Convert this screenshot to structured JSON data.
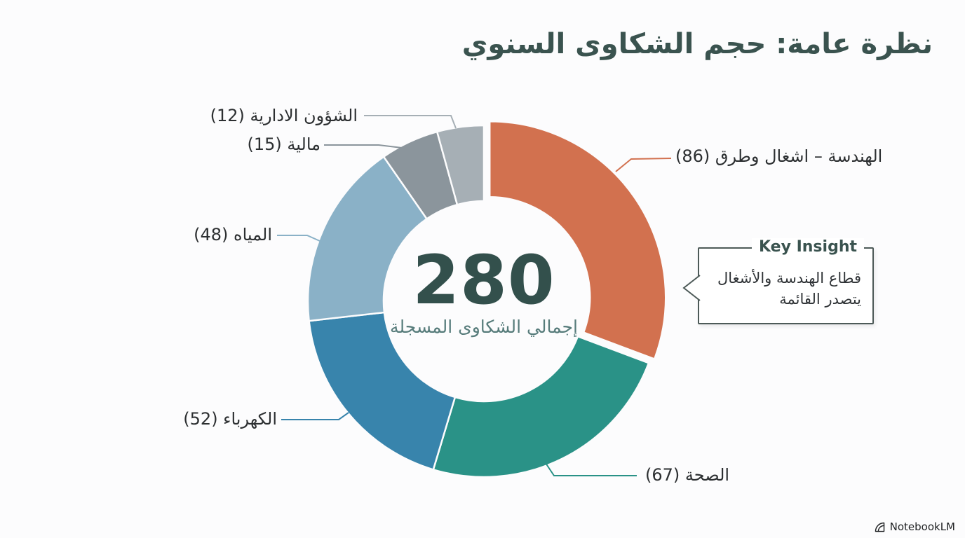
{
  "title": "نظرة عامة: حجم الشكاوى السنوي",
  "chart_data": {
    "type": "pie",
    "variant": "donut",
    "direction": "clockwise",
    "start_angle_deg": 0,
    "total": 280,
    "center_label": "280",
    "center_sublabel": "إجمالي الشكاوى المسجلة",
    "legend_position": "callout-labels",
    "segments": [
      {
        "id": "engineering",
        "label": "الهندسة – اشغال وطرق",
        "value": 86,
        "display": "الهندسة – اشغال وطرق (86)",
        "color": "#d2714f",
        "exploded": true
      },
      {
        "id": "health",
        "label": "الصحة",
        "value": 67,
        "display": "الصحة (67)",
        "color": "#2a9287",
        "exploded": false
      },
      {
        "id": "electricity",
        "label": "الكهرباء",
        "value": 52,
        "display": "الكهرباء (52)",
        "color": "#3884ac",
        "exploded": false
      },
      {
        "id": "water",
        "label": "المياه",
        "value": 48,
        "display": "المياه (48)",
        "color": "#8ab1c7",
        "exploded": false
      },
      {
        "id": "finance",
        "label": "مالية",
        "value": 15,
        "display": "مالية (15)",
        "color": "#8b959c",
        "exploded": false
      },
      {
        "id": "admin",
        "label": "الشؤون الادارية",
        "value": 12,
        "display": "الشؤون الادارية (12)",
        "color": "#a6afb5",
        "exploded": false
      }
    ]
  },
  "key_insight": {
    "title": "Key Insight",
    "lines": [
      "قطاع الهندسة والأشغال",
      "يتصدر القائمة"
    ]
  },
  "watermark": {
    "label": "NotebookLM"
  },
  "colors": {
    "background": "#fcfcfd",
    "heading": "#3a534f",
    "center_total": "#33504c",
    "center_sublabel": "#577c7b",
    "label_text": "#2c2f31",
    "insight_border": "#4d5a58"
  }
}
